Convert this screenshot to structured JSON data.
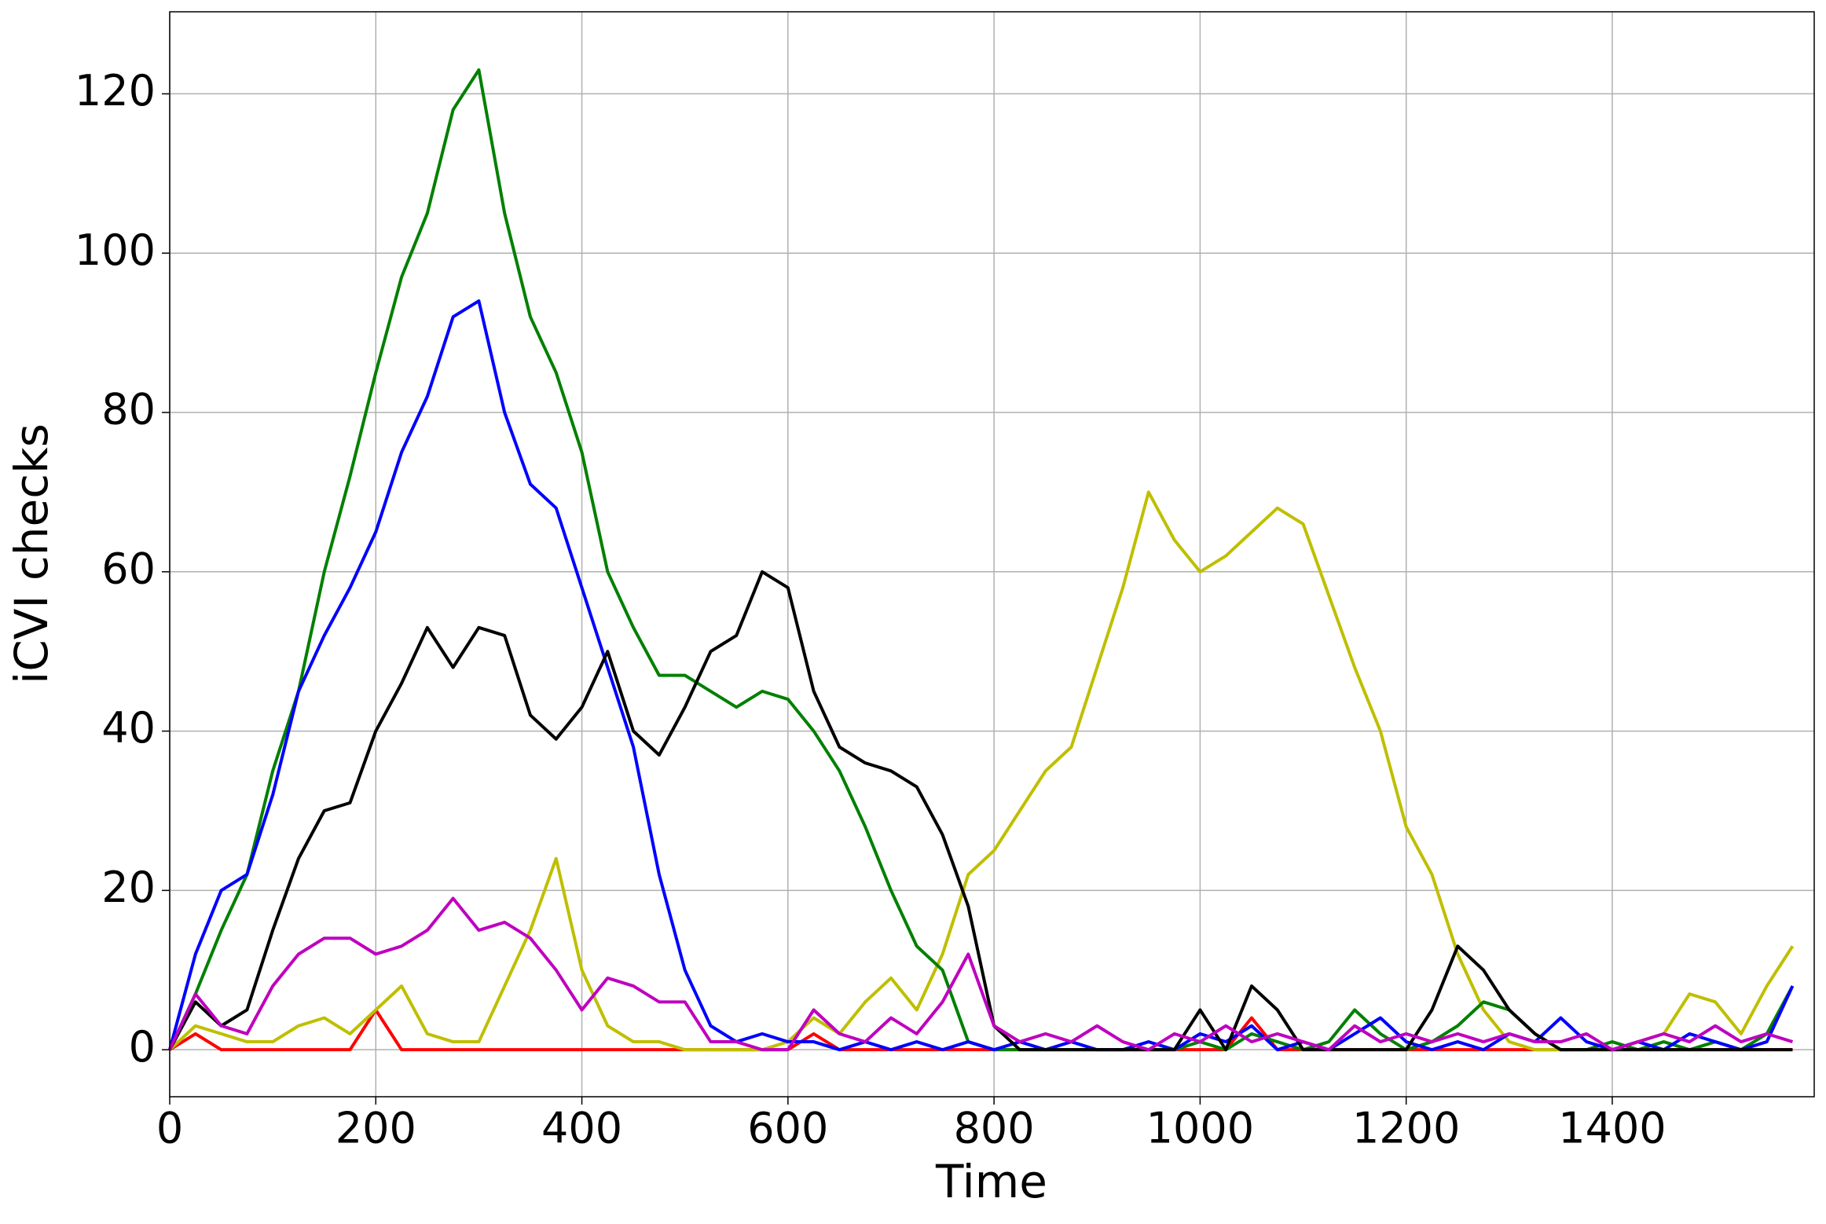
{
  "chart_data": {
    "type": "line",
    "x_label": "Time",
    "y_label": "iCVI checks",
    "x": [
      0,
      25,
      50,
      75,
      100,
      125,
      150,
      175,
      200,
      225,
      250,
      275,
      300,
      325,
      350,
      375,
      400,
      425,
      450,
      475,
      500,
      525,
      550,
      575,
      600,
      625,
      650,
      675,
      700,
      725,
      750,
      775,
      800,
      825,
      850,
      875,
      900,
      925,
      950,
      975,
      1000,
      1025,
      1050,
      1075,
      1100,
      1125,
      1150,
      1175,
      1200,
      1225,
      1250,
      1275,
      1300,
      1325,
      1350,
      1375,
      1400,
      1425,
      1450,
      1475,
      1500,
      1525,
      1550,
      1575
    ],
    "series": [
      {
        "color": "#ff0000",
        "values": [
          0,
          2,
          0,
          0,
          0,
          0,
          0,
          0,
          5,
          0,
          0,
          0,
          0,
          0,
          0,
          0,
          0,
          0,
          0,
          0,
          0,
          0,
          0,
          0,
          0,
          2,
          0,
          0,
          0,
          0,
          0,
          0,
          0,
          0,
          0,
          0,
          0,
          0,
          0,
          0,
          0,
          0,
          4,
          0,
          0,
          0,
          0,
          0,
          0,
          0,
          0,
          0,
          0,
          0,
          0,
          0,
          0,
          0,
          0,
          0,
          0,
          0,
          0,
          0
        ]
      },
      {
        "color": "#bfbf00",
        "values": [
          0,
          3,
          2,
          1,
          1,
          3,
          4,
          2,
          5,
          8,
          2,
          1,
          1,
          8,
          15,
          24,
          10,
          3,
          1,
          1,
          0,
          0,
          0,
          0,
          1,
          4,
          2,
          6,
          9,
          5,
          12,
          22,
          25,
          30,
          35,
          38,
          48,
          58,
          70,
          64,
          60,
          62,
          65,
          68,
          66,
          57,
          48,
          40,
          28,
          22,
          12,
          5,
          1,
          0,
          0,
          0,
          0,
          1,
          2,
          7,
          6,
          2,
          8,
          13
        ]
      },
      {
        "color": "#008000",
        "values": [
          0,
          7,
          15,
          22,
          35,
          45,
          60,
          72,
          85,
          97,
          105,
          118,
          123,
          105,
          92,
          85,
          75,
          60,
          53,
          47,
          47,
          45,
          43,
          45,
          44,
          40,
          35,
          28,
          20,
          13,
          10,
          1,
          0,
          0,
          0,
          0,
          0,
          0,
          0,
          0,
          1,
          0,
          2,
          1,
          0,
          1,
          5,
          2,
          0,
          1,
          3,
          6,
          5,
          2,
          0,
          0,
          1,
          0,
          1,
          0,
          1,
          0,
          2,
          8
        ]
      },
      {
        "color": "#0000ff",
        "values": [
          0,
          12,
          20,
          22,
          32,
          45,
          52,
          58,
          65,
          75,
          82,
          92,
          94,
          80,
          71,
          68,
          58,
          48,
          38,
          22,
          10,
          3,
          1,
          2,
          1,
          1,
          0,
          1,
          0,
          1,
          0,
          1,
          0,
          1,
          0,
          1,
          0,
          0,
          1,
          0,
          2,
          1,
          3,
          0,
          1,
          0,
          2,
          4,
          1,
          0,
          1,
          0,
          2,
          1,
          4,
          1,
          0,
          1,
          0,
          2,
          1,
          0,
          1,
          8
        ]
      },
      {
        "color": "#000000",
        "values": [
          0,
          6,
          3,
          5,
          15,
          24,
          30,
          31,
          40,
          46,
          53,
          48,
          53,
          52,
          42,
          39,
          43,
          50,
          40,
          37,
          43,
          50,
          52,
          60,
          58,
          45,
          38,
          36,
          35,
          33,
          27,
          18,
          3,
          0,
          0,
          0,
          0,
          0,
          0,
          0,
          5,
          0,
          8,
          5,
          0,
          0,
          0,
          0,
          0,
          5,
          13,
          10,
          5,
          2,
          0,
          0,
          0,
          0,
          0,
          0,
          0,
          0,
          0,
          0
        ]
      },
      {
        "color": "#bf00bf",
        "values": [
          0,
          7,
          3,
          2,
          8,
          12,
          14,
          14,
          12,
          13,
          15,
          19,
          15,
          16,
          14,
          10,
          5,
          9,
          8,
          6,
          6,
          1,
          1,
          0,
          0,
          5,
          2,
          1,
          4,
          2,
          6,
          12,
          3,
          1,
          2,
          1,
          3,
          1,
          0,
          2,
          1,
          3,
          1,
          2,
          1,
          0,
          3,
          1,
          2,
          1,
          2,
          1,
          2,
          1,
          1,
          2,
          0,
          1,
          2,
          1,
          3,
          1,
          2,
          1
        ]
      }
    ],
    "xlim": [
      0,
      1596
    ],
    "ylim": [
      -5.9,
      130.3
    ],
    "xticks": [
      0,
      200,
      400,
      600,
      800,
      1000,
      1200,
      1400
    ],
    "yticks": [
      0,
      20,
      40,
      60,
      80,
      100,
      120
    ],
    "grid": true
  }
}
